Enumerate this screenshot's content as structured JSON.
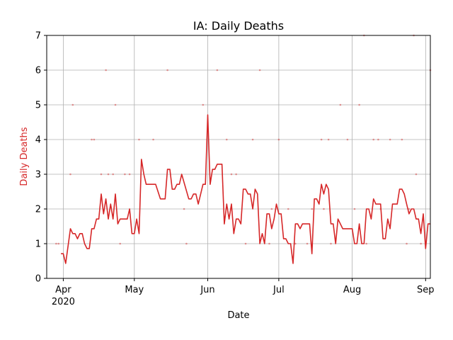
{
  "chart_data": {
    "type": "line",
    "title": "IA: Daily Deaths",
    "xlabel": "Date",
    "ylabel": "Daily Deaths",
    "ylim": [
      0,
      7
    ],
    "xlim": [
      "2020-03-25",
      "2020-09-03"
    ],
    "grid": true,
    "colors": {
      "line": "#d62728",
      "ylabel": "#d62728",
      "grid": "#b0b0b0"
    },
    "y_ticks": [
      "0",
      "1",
      "2",
      "3",
      "4",
      "5",
      "6",
      "7"
    ],
    "x_ticks": [
      {
        "date": "2020-04-01",
        "label": "Apr",
        "sublabel": "2020"
      },
      {
        "date": "2020-05-01",
        "label": "May",
        "sublabel": ""
      },
      {
        "date": "2020-06-01",
        "label": "Jun",
        "sublabel": ""
      },
      {
        "date": "2020-07-01",
        "label": "Jul",
        "sublabel": ""
      },
      {
        "date": "2020-08-01",
        "label": "Aug",
        "sublabel": ""
      },
      {
        "date": "2020-09-01",
        "label": "Sep",
        "sublabel": ""
      }
    ],
    "series": [
      {
        "type": "line",
        "x": [
          "2020-03-31",
          "2020-04-01",
          "2020-04-02",
          "2020-04-04",
          "2020-04-05",
          "2020-04-06",
          "2020-04-07",
          "2020-04-08",
          "2020-04-09",
          "2020-04-10",
          "2020-04-11",
          "2020-04-12",
          "2020-04-13",
          "2020-04-14",
          "2020-04-15",
          "2020-04-16",
          "2020-04-17",
          "2020-04-18",
          "2020-04-19",
          "2020-04-20",
          "2020-04-21",
          "2020-04-22",
          "2020-04-23",
          "2020-04-24",
          "2020-04-25",
          "2020-04-26",
          "2020-04-27",
          "2020-04-28",
          "2020-04-29",
          "2020-04-30",
          "2020-05-01",
          "2020-05-02",
          "2020-05-03",
          "2020-05-04",
          "2020-05-05",
          "2020-05-06",
          "2020-05-09",
          "2020-05-10",
          "2020-05-12",
          "2020-05-13",
          "2020-05-14",
          "2020-05-15",
          "2020-05-16",
          "2020-05-17",
          "2020-05-18",
          "2020-05-19",
          "2020-05-20",
          "2020-05-21",
          "2020-05-24",
          "2020-05-25",
          "2020-05-26",
          "2020-05-27",
          "2020-05-28",
          "2020-05-30",
          "2020-05-31",
          "2020-06-01",
          "2020-06-02",
          "2020-06-03",
          "2020-06-04",
          "2020-06-05",
          "2020-06-06",
          "2020-06-07",
          "2020-06-08",
          "2020-06-09",
          "2020-06-10",
          "2020-06-11",
          "2020-06-12",
          "2020-06-13",
          "2020-06-14",
          "2020-06-15",
          "2020-06-16",
          "2020-06-17",
          "2020-06-18",
          "2020-06-19",
          "2020-06-20",
          "2020-06-21",
          "2020-06-22",
          "2020-06-23",
          "2020-06-24",
          "2020-06-25",
          "2020-06-26",
          "2020-06-27",
          "2020-06-28",
          "2020-06-29",
          "2020-06-30",
          "2020-07-01",
          "2020-07-02",
          "2020-07-03",
          "2020-07-04",
          "2020-07-05",
          "2020-07-06",
          "2020-07-07",
          "2020-07-08",
          "2020-07-09",
          "2020-07-10",
          "2020-07-11",
          "2020-07-12",
          "2020-07-13",
          "2020-07-14",
          "2020-07-15",
          "2020-07-16",
          "2020-07-17",
          "2020-07-18",
          "2020-07-19",
          "2020-07-20",
          "2020-07-21",
          "2020-07-22",
          "2020-07-23",
          "2020-07-24",
          "2020-07-25",
          "2020-07-26",
          "2020-07-28",
          "2020-07-29",
          "2020-07-30",
          "2020-07-31",
          "2020-08-01",
          "2020-08-02",
          "2020-08-03",
          "2020-08-04",
          "2020-08-05",
          "2020-08-06",
          "2020-08-07",
          "2020-08-08",
          "2020-08-09",
          "2020-08-10",
          "2020-08-11",
          "2020-08-12",
          "2020-08-13",
          "2020-08-14",
          "2020-08-15",
          "2020-08-16",
          "2020-08-17",
          "2020-08-18",
          "2020-08-19",
          "2020-08-20",
          "2020-08-21",
          "2020-08-22",
          "2020-08-23",
          "2020-08-24",
          "2020-08-25",
          "2020-08-26",
          "2020-08-27",
          "2020-08-28",
          "2020-08-29",
          "2020-08-30",
          "2020-08-31",
          "2020-09-01",
          "2020-09-02",
          "2020-09-03"
        ],
        "y": [
          0.71,
          0.71,
          0.43,
          1.43,
          1.29,
          1.29,
          1.14,
          1.29,
          1.29,
          1.0,
          0.86,
          0.86,
          1.43,
          1.43,
          1.71,
          1.71,
          2.43,
          1.86,
          2.29,
          1.71,
          2.14,
          1.71,
          2.43,
          1.57,
          1.71,
          1.71,
          1.71,
          1.71,
          2.0,
          1.29,
          1.29,
          1.71,
          1.29,
          3.43,
          3.0,
          2.71,
          2.71,
          2.71,
          2.29,
          2.29,
          2.29,
          3.14,
          3.14,
          2.57,
          2.57,
          2.71,
          2.71,
          3.0,
          2.29,
          2.29,
          2.43,
          2.43,
          2.14,
          2.71,
          2.71,
          4.71,
          2.71,
          3.14,
          3.14,
          3.29,
          3.29,
          3.29,
          1.57,
          2.14,
          1.71,
          2.14,
          1.29,
          1.71,
          1.71,
          1.57,
          2.57,
          2.57,
          2.43,
          2.43,
          2.0,
          2.57,
          2.43,
          1.0,
          1.29,
          1.0,
          1.86,
          1.86,
          1.43,
          1.71,
          2.14,
          1.86,
          1.86,
          1.14,
          1.14,
          1.0,
          1.0,
          0.43,
          1.57,
          1.57,
          1.43,
          1.57,
          1.57,
          1.57,
          1.57,
          0.71,
          2.29,
          2.29,
          2.14,
          2.71,
          2.43,
          2.71,
          2.57,
          1.57,
          1.57,
          1.0,
          1.71,
          1.43,
          1.43,
          1.43,
          1.43,
          1.43,
          1.0,
          1.0,
          1.57,
          1.0,
          1.0,
          2.0,
          2.0,
          1.71,
          2.29,
          2.14,
          2.14,
          2.14,
          1.14,
          1.14,
          1.71,
          1.43,
          2.14,
          2.14,
          2.14,
          2.57,
          2.57,
          2.43,
          2.14,
          1.86,
          2.0,
          2.0,
          1.71,
          1.71,
          1.29,
          1.86,
          0.86,
          1.57,
          1.57
        ]
      },
      {
        "type": "scatter",
        "x": [
          "2020-03-29",
          "2020-03-30",
          "2020-04-04",
          "2020-04-05",
          "2020-04-13",
          "2020-04-14",
          "2020-04-17",
          "2020-04-19",
          "2020-04-20",
          "2020-04-22",
          "2020-04-23",
          "2020-04-25",
          "2020-04-27",
          "2020-04-29",
          "2020-05-03",
          "2020-05-09",
          "2020-05-15",
          "2020-05-22",
          "2020-05-23",
          "2020-05-30",
          "2020-06-05",
          "2020-06-09",
          "2020-06-11",
          "2020-06-13",
          "2020-06-17",
          "2020-06-20",
          "2020-06-23",
          "2020-06-27",
          "2020-06-28",
          "2020-07-01",
          "2020-07-05",
          "2020-07-08",
          "2020-07-13",
          "2020-07-15",
          "2020-07-19",
          "2020-07-20",
          "2020-07-22",
          "2020-07-23",
          "2020-07-27",
          "2020-07-30",
          "2020-08-02",
          "2020-08-04",
          "2020-08-06",
          "2020-08-07",
          "2020-08-10",
          "2020-08-12",
          "2020-08-13",
          "2020-08-17",
          "2020-08-22",
          "2020-08-24",
          "2020-08-25",
          "2020-08-27",
          "2020-08-28",
          "2020-08-30",
          "2020-09-01",
          "2020-09-03"
        ],
        "y": [
          1,
          1,
          3,
          5,
          4,
          4,
          3,
          6,
          3,
          3,
          5,
          1,
          3,
          3,
          4,
          4,
          6,
          2,
          1,
          5,
          6,
          4,
          3,
          3,
          1,
          4,
          6,
          1,
          2,
          4,
          2,
          1,
          1,
          2,
          4,
          2,
          4,
          1,
          5,
          4,
          2,
          5,
          7,
          1,
          4,
          4,
          2,
          4,
          4,
          1,
          2,
          7,
          3,
          1,
          1,
          6
        ]
      }
    ]
  }
}
